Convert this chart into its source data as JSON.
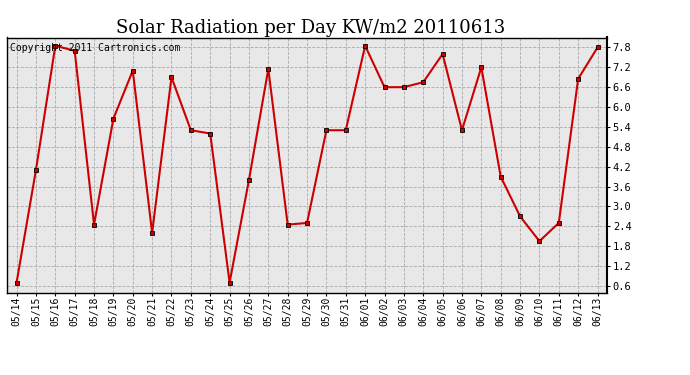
{
  "title": "Solar Radiation per Day KW/m2 20110613",
  "copyright_text": "Copyright 2011 Cartronics.com",
  "dates": [
    "05/14",
    "05/15",
    "05/16",
    "05/17",
    "05/18",
    "05/19",
    "05/20",
    "05/21",
    "05/22",
    "05/23",
    "05/24",
    "05/25",
    "05/26",
    "05/27",
    "05/28",
    "05/29",
    "05/30",
    "05/31",
    "06/01",
    "06/02",
    "06/03",
    "06/04",
    "06/05",
    "06/06",
    "06/07",
    "06/08",
    "06/09",
    "06/10",
    "06/11",
    "06/12",
    "06/13"
  ],
  "values": [
    0.7,
    4.1,
    7.85,
    7.7,
    2.45,
    5.65,
    7.1,
    2.2,
    6.9,
    5.3,
    5.2,
    0.7,
    3.8,
    7.15,
    2.45,
    2.5,
    5.3,
    5.3,
    7.85,
    6.6,
    6.6,
    6.75,
    7.6,
    5.3,
    7.2,
    3.9,
    2.7,
    1.95,
    2.5,
    6.85,
    7.8
  ],
  "line_color": "#cc0000",
  "marker": "s",
  "marker_size": 3,
  "bg_color": "#ffffff",
  "plot_bg_color": "#e8e8e8",
  "grid_color": "#aaaaaa",
  "ylim": [
    0.4,
    8.1
  ],
  "yticks": [
    0.6,
    1.2,
    1.8,
    2.4,
    3.0,
    3.6,
    4.2,
    4.8,
    5.4,
    6.0,
    6.6,
    7.2,
    7.8
  ],
  "title_fontsize": 13,
  "copyright_fontsize": 7,
  "tick_fontsize": 7,
  "ytick_fontsize": 7.5
}
